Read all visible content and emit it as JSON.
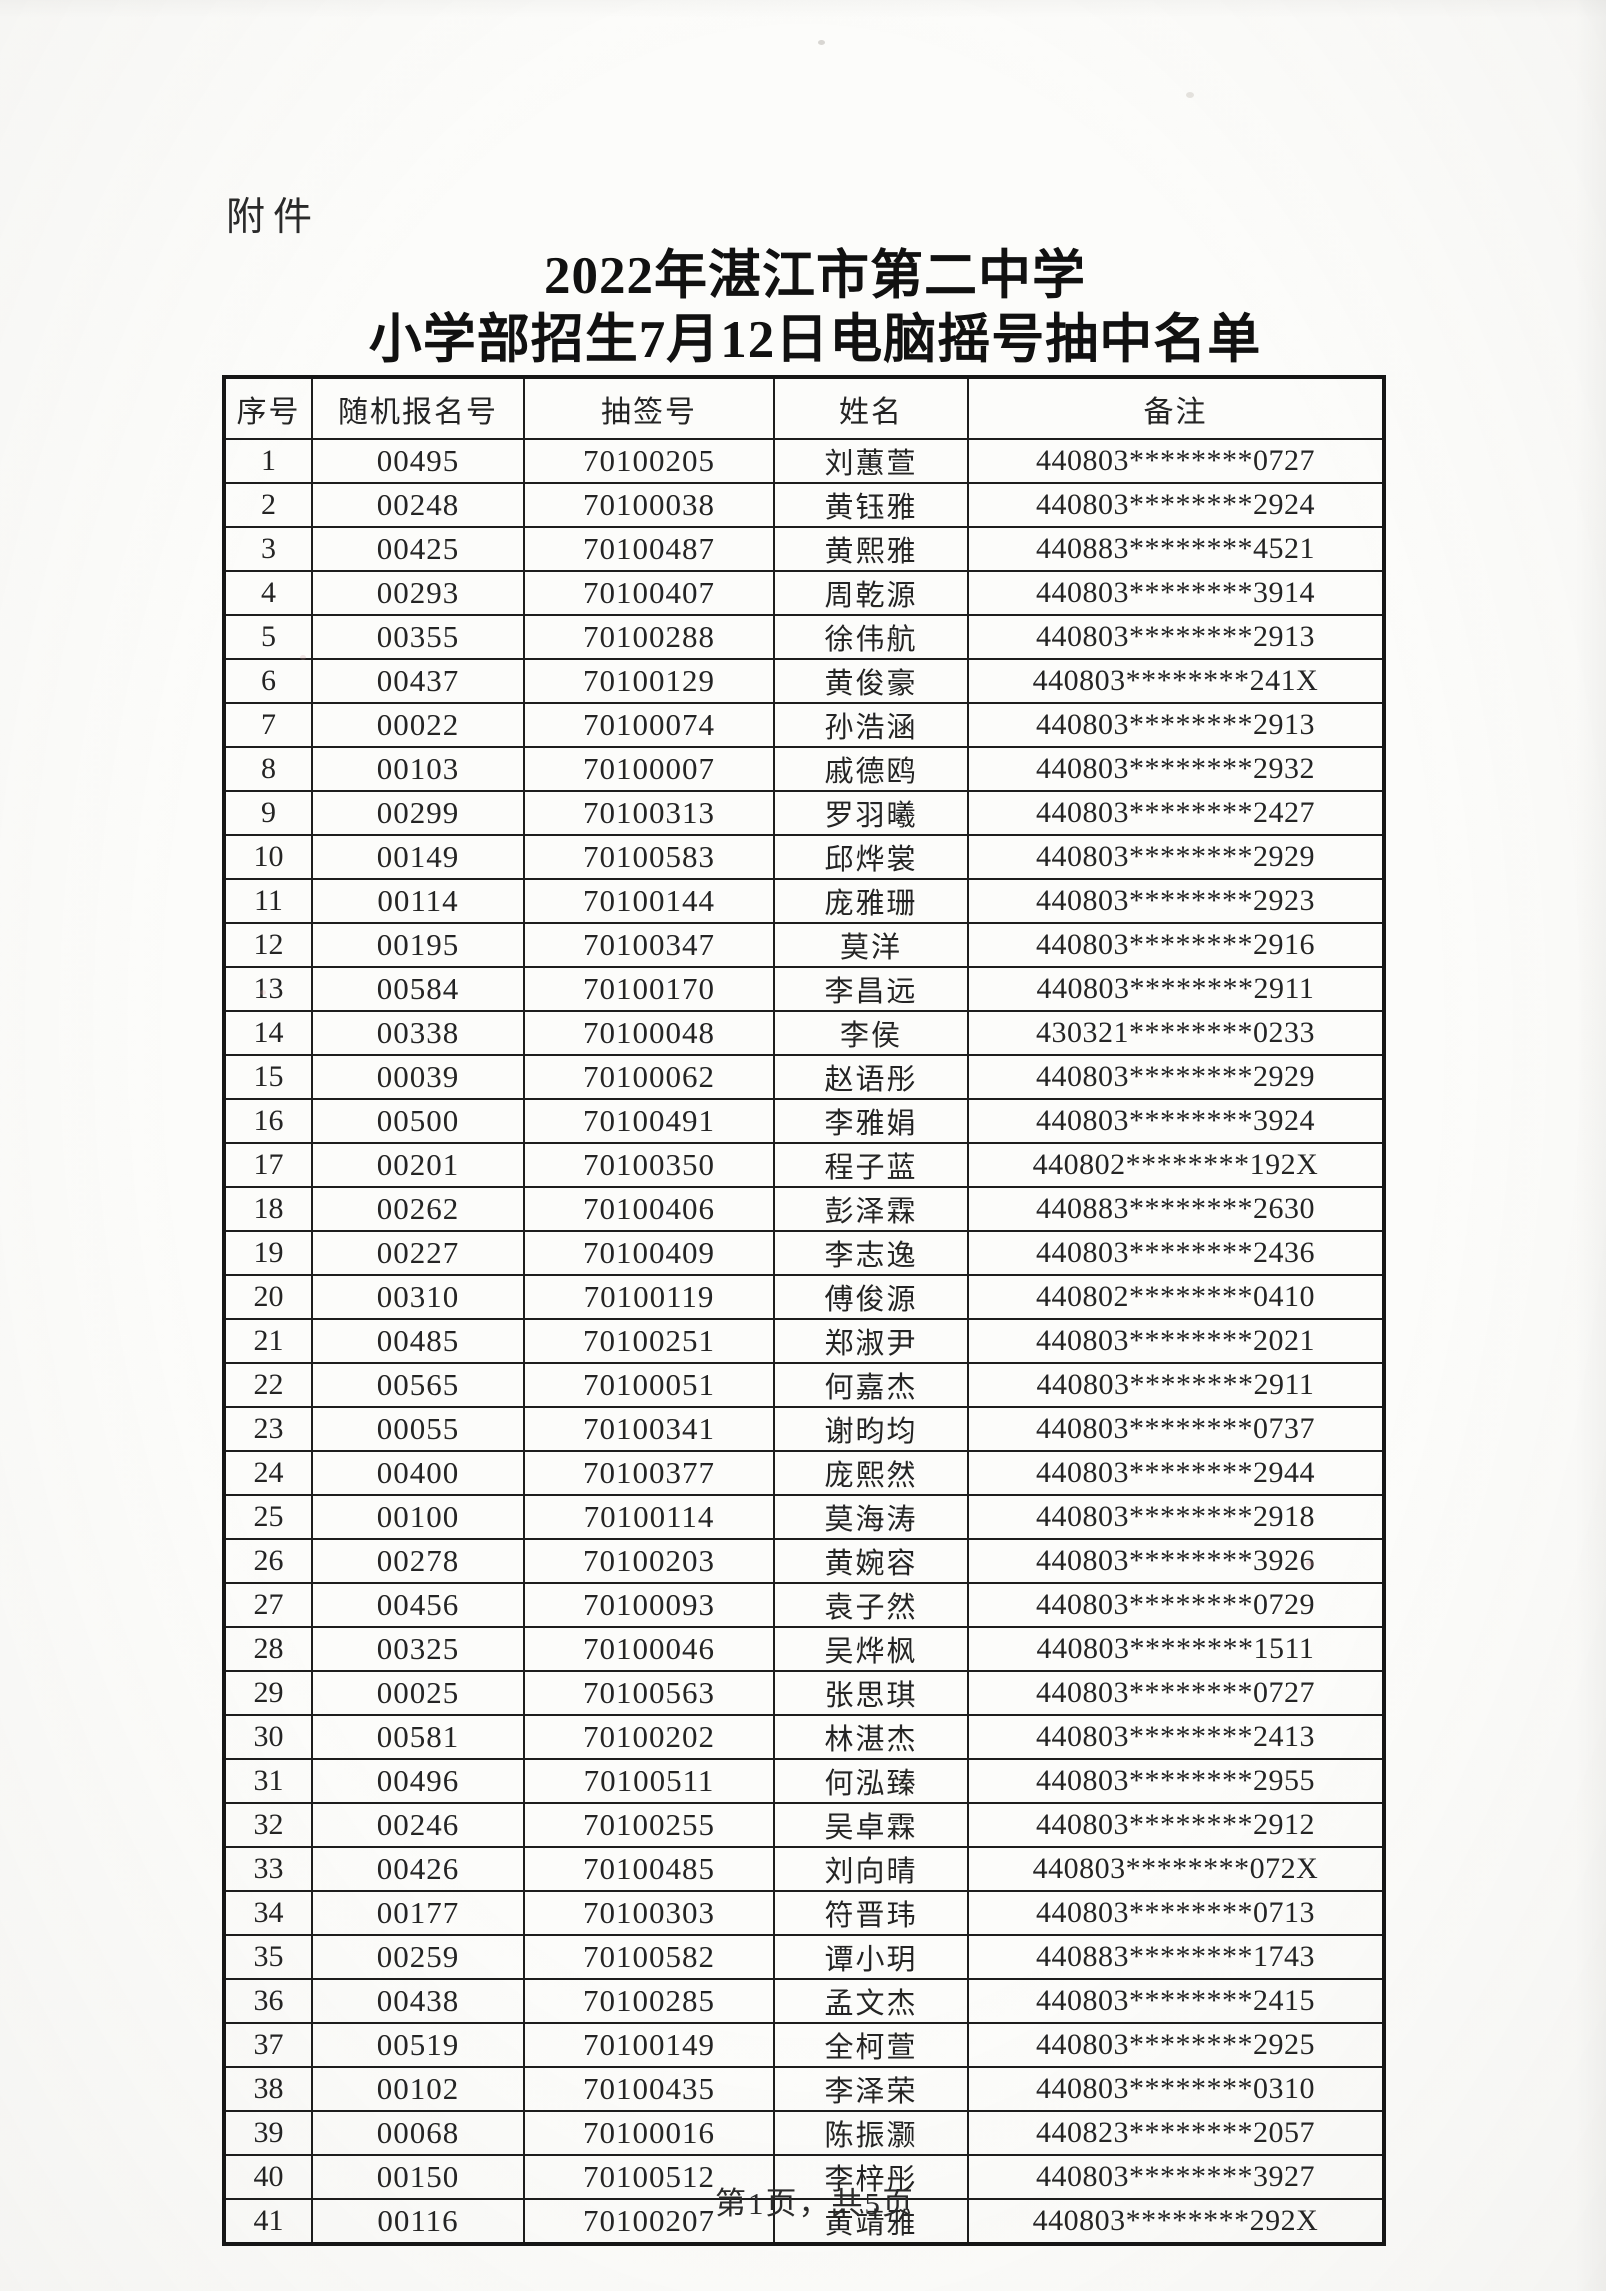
{
  "document": {
    "attachment_label": "附件",
    "title_line1": "2022年湛江市第二中学",
    "title_line2": "小学部招生7月12日电脑摇号抽中名单",
    "page_footer": "第1页，共5页"
  },
  "table": {
    "headers": [
      "序号",
      "随机报名号",
      "抽签号",
      "姓名",
      "备注"
    ],
    "rows": [
      [
        "1",
        "00495",
        "70100205",
        "刘蕙萱",
        "440803********0727"
      ],
      [
        "2",
        "00248",
        "70100038",
        "黄钰雅",
        "440803********2924"
      ],
      [
        "3",
        "00425",
        "70100487",
        "黄熙雅",
        "440883********4521"
      ],
      [
        "4",
        "00293",
        "70100407",
        "周乾源",
        "440803********3914"
      ],
      [
        "5",
        "00355",
        "70100288",
        "徐伟航",
        "440803********2913"
      ],
      [
        "6",
        "00437",
        "70100129",
        "黄俊豪",
        "440803********241X"
      ],
      [
        "7",
        "00022",
        "70100074",
        "孙浩涵",
        "440803********2913"
      ],
      [
        "8",
        "00103",
        "70100007",
        "戚德鸥",
        "440803********2932"
      ],
      [
        "9",
        "00299",
        "70100313",
        "罗羽曦",
        "440803********2427"
      ],
      [
        "10",
        "00149",
        "70100583",
        "邱烨裳",
        "440803********2929"
      ],
      [
        "11",
        "00114",
        "70100144",
        "庞雅珊",
        "440803********2923"
      ],
      [
        "12",
        "00195",
        "70100347",
        "莫洋",
        "440803********2916"
      ],
      [
        "13",
        "00584",
        "70100170",
        "李昌远",
        "440803********2911"
      ],
      [
        "14",
        "00338",
        "70100048",
        "李侯",
        "430321********0233"
      ],
      [
        "15",
        "00039",
        "70100062",
        "赵语彤",
        "440803********2929"
      ],
      [
        "16",
        "00500",
        "70100491",
        "李雅娟",
        "440803********3924"
      ],
      [
        "17",
        "00201",
        "70100350",
        "程子蓝",
        "440802********192X"
      ],
      [
        "18",
        "00262",
        "70100406",
        "彭泽霖",
        "440883********2630"
      ],
      [
        "19",
        "00227",
        "70100409",
        "李志逸",
        "440803********2436"
      ],
      [
        "20",
        "00310",
        "70100119",
        "傅俊源",
        "440802********0410"
      ],
      [
        "21",
        "00485",
        "70100251",
        "郑淑尹",
        "440803********2021"
      ],
      [
        "22",
        "00565",
        "70100051",
        "何嘉杰",
        "440803********2911"
      ],
      [
        "23",
        "00055",
        "70100341",
        "谢昀均",
        "440803********0737"
      ],
      [
        "24",
        "00400",
        "70100377",
        "庞熙然",
        "440803********2944"
      ],
      [
        "25",
        "00100",
        "70100114",
        "莫海涛",
        "440803********2918"
      ],
      [
        "26",
        "00278",
        "70100203",
        "黄婉容",
        "440803********3926"
      ],
      [
        "27",
        "00456",
        "70100093",
        "袁子然",
        "440803********0729"
      ],
      [
        "28",
        "00325",
        "70100046",
        "吴烨枫",
        "440803********1511"
      ],
      [
        "29",
        "00025",
        "70100563",
        "张思琪",
        "440803********0727"
      ],
      [
        "30",
        "00581",
        "70100202",
        "林湛杰",
        "440803********2413"
      ],
      [
        "31",
        "00496",
        "70100511",
        "何泓臻",
        "440803********2955"
      ],
      [
        "32",
        "00246",
        "70100255",
        "吴卓霖",
        "440803********2912"
      ],
      [
        "33",
        "00426",
        "70100485",
        "刘向晴",
        "440803********072X"
      ],
      [
        "34",
        "00177",
        "70100303",
        "符晋玮",
        "440803********0713"
      ],
      [
        "35",
        "00259",
        "70100582",
        "谭小玥",
        "440883********1743"
      ],
      [
        "36",
        "00438",
        "70100285",
        "孟文杰",
        "440803********2415"
      ],
      [
        "37",
        "00519",
        "70100149",
        "全柯萱",
        "440803********2925"
      ],
      [
        "38",
        "00102",
        "70100435",
        "李泽荣",
        "440803********0310"
      ],
      [
        "39",
        "00068",
        "70100016",
        "陈振灏",
        "440823********2057"
      ],
      [
        "40",
        "00150",
        "70100512",
        "李梓彤",
        "440803********3927"
      ],
      [
        "41",
        "00116",
        "70100207",
        "黄靖雅",
        "440803********292X"
      ]
    ]
  }
}
